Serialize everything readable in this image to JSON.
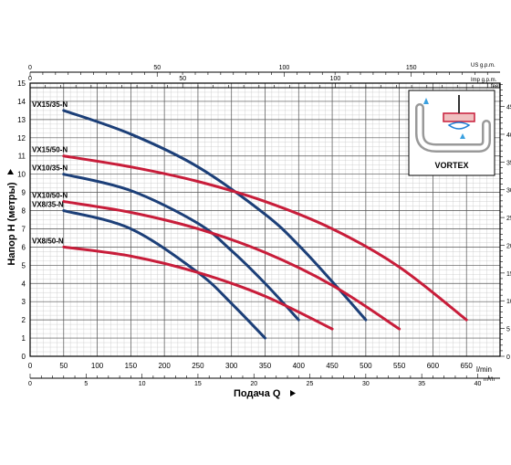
{
  "chart_data": {
    "type": "line",
    "title": "",
    "xlabel": "Подача Q",
    "ylabel": "Напор H (метры)",
    "x_unit": "l/min",
    "y_unit": "",
    "xlim": [
      0,
      700
    ],
    "ylim": [
      0,
      15
    ],
    "x_ticks": [
      0,
      50,
      100,
      150,
      200,
      250,
      300,
      350,
      400,
      450,
      500,
      550,
      600,
      650
    ],
    "y_ticks": [
      0,
      1,
      2,
      3,
      4,
      5,
      6,
      7,
      8,
      9,
      10,
      11,
      12,
      13,
      14,
      15
    ],
    "grid": true,
    "secondary_axes": {
      "m3h": {
        "unit": "m³/h",
        "ticks": [
          0,
          5,
          10,
          15,
          20,
          25,
          30,
          35,
          40
        ]
      },
      "us_gpm": {
        "unit": "US g.p.m.",
        "ticks": [
          0,
          50,
          100,
          150
        ]
      },
      "imp_gpm": {
        "unit": "Imp g.p.m.",
        "ticks": [
          0,
          50,
          100
        ]
      },
      "feet": {
        "unit": "feet",
        "ticks": [
          0,
          5,
          10,
          15,
          20,
          25,
          30,
          35,
          40,
          45
        ]
      }
    },
    "series": [
      {
        "name": "VX15/35-N",
        "color": "#1c3f78",
        "x": [
          50,
          150,
          250,
          350,
          400,
          450,
          500
        ],
        "y": [
          13.5,
          12.2,
          10.4,
          7.8,
          6.1,
          4.1,
          2.0
        ]
      },
      {
        "name": "VX15/50-N",
        "color": "#c81d3a",
        "x": [
          50,
          150,
          250,
          350,
          450,
          550,
          650
        ],
        "y": [
          11.0,
          10.4,
          9.6,
          8.5,
          7.0,
          4.9,
          2.0
        ]
      },
      {
        "name": "VX10/35-N",
        "color": "#1c3f78",
        "x": [
          50,
          150,
          250,
          300,
          350,
          400
        ],
        "y": [
          10.0,
          9.1,
          7.3,
          5.8,
          4.0,
          2.0
        ]
      },
      {
        "name": "VX10/50-N",
        "color": "#c81d3a",
        "x": [
          50,
          150,
          250,
          350,
          450,
          550
        ],
        "y": [
          8.5,
          7.9,
          7.0,
          5.7,
          3.9,
          1.5
        ]
      },
      {
        "name": "VX8/35-N",
        "color": "#1c3f78",
        "x": [
          50,
          150,
          250,
          300,
          350
        ],
        "y": [
          8.0,
          7.0,
          4.6,
          2.9,
          1.0
        ]
      },
      {
        "name": "VX8/50-N",
        "color": "#c81d3a",
        "x": [
          50,
          150,
          250,
          350,
          450
        ],
        "y": [
          6.0,
          5.5,
          4.6,
          3.3,
          1.5
        ]
      }
    ]
  },
  "inset": {
    "label": "VORTEX"
  }
}
